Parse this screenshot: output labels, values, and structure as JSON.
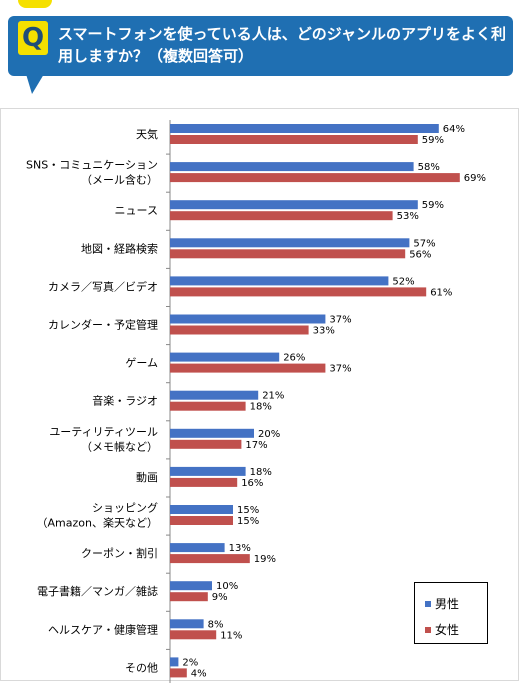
{
  "question": {
    "badge": "Q",
    "text": "スマートフォンを使っている人は、どのジャンルのアプリをよく利用しますか？（複数回答可）"
  },
  "colors": {
    "banner": "#1f6fb2",
    "badge": "#f5e000",
    "male": "#4472c4",
    "female": "#c0504d"
  },
  "chart_data": {
    "type": "bar",
    "orientation": "horizontal",
    "categories": [
      [
        "天気"
      ],
      [
        "SNS・コミュニケーション",
        "（メール含む）"
      ],
      [
        "ニュース"
      ],
      [
        "地図・経路検索"
      ],
      [
        "カメラ／写真／ビデオ"
      ],
      [
        "カレンダー・予定管理"
      ],
      [
        "ゲーム"
      ],
      [
        "音楽・ラジオ"
      ],
      [
        "ユーティリティツール",
        "（メモ帳など）"
      ],
      [
        "動画"
      ],
      [
        "ショッピング",
        "（Amazon、楽天など）"
      ],
      [
        "クーポン・割引"
      ],
      [
        "電子書籍／マンガ／雑誌"
      ],
      [
        "ヘルスケア・健康管理"
      ],
      [
        "その他"
      ]
    ],
    "series": [
      {
        "name": "男性",
        "values": [
          64,
          58,
          59,
          57,
          52,
          37,
          26,
          21,
          20,
          18,
          15,
          13,
          10,
          8,
          2
        ]
      },
      {
        "name": "女性",
        "values": [
          59,
          69,
          53,
          56,
          61,
          33,
          37,
          18,
          17,
          16,
          15,
          19,
          9,
          11,
          4
        ]
      }
    ],
    "value_suffix": "%",
    "xlim": [
      0,
      100
    ],
    "legend_position": "bottom-right"
  }
}
